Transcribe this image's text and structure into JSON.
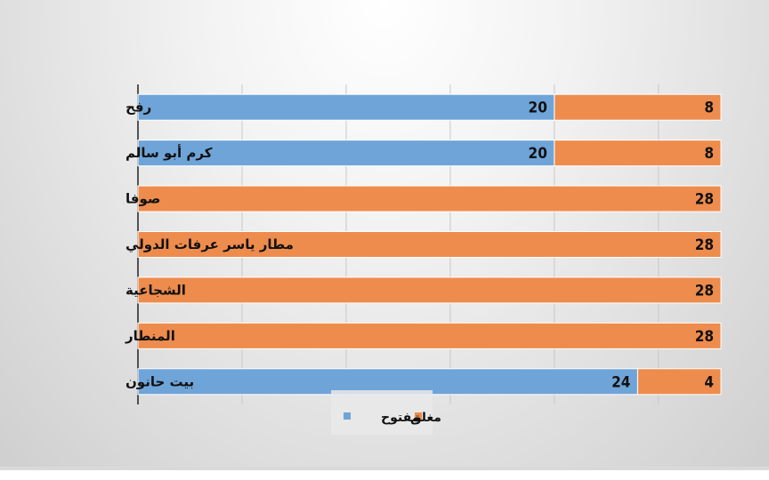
{
  "chart_data": {
    "type": "bar",
    "orientation": "horizontal",
    "stacked": true,
    "categories": [
      "رفح",
      "كرم أبو سالم",
      "صوفا",
      "مطار ياسر عرفات الدولي",
      "الشجاعية",
      "المنطار",
      "بيت حانون"
    ],
    "series": [
      {
        "name": "مفتوح",
        "values": [
          20,
          20,
          0,
          0,
          0,
          0,
          24
        ],
        "color": "#6fa4d8"
      },
      {
        "name": "مغلق",
        "values": [
          8,
          8,
          28,
          28,
          28,
          28,
          4
        ],
        "color": "#ee8c4d"
      }
    ],
    "xlim": [
      0,
      28
    ],
    "grid": true,
    "legend": "bottom"
  }
}
